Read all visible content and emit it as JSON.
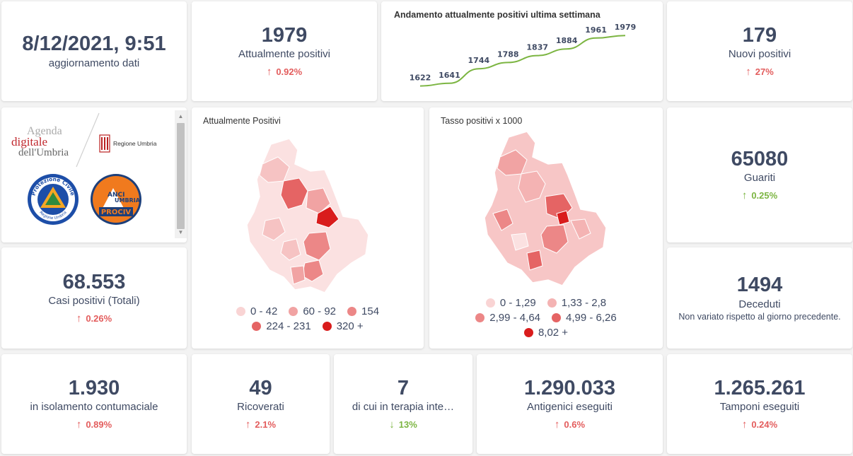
{
  "colors": {
    "up": "#e35d5d",
    "down": "#7cb542",
    "text": "#3f4a63",
    "line": "#7cb542"
  },
  "update": {
    "datetime": "8/12/2021, 9:51",
    "label": "aggiornamento dati"
  },
  "positivi": {
    "value": "1979",
    "label": "Attualmente positivi",
    "trend": "0.92%",
    "direction": "up"
  },
  "weekly_chart": {
    "title": "Andamento attualmente positivi ultima settimana"
  },
  "chart_data": {
    "type": "line",
    "title": "Andamento attualmente positivi ultima settimana",
    "x": [
      1,
      2,
      3,
      4,
      5,
      6,
      7,
      8
    ],
    "values": [
      1622,
      1641,
      1744,
      1788,
      1837,
      1884,
      1961,
      1979
    ],
    "labels": [
      "1622",
      "1641",
      "1744",
      "1788",
      "1837",
      "1884",
      "1961",
      "1979"
    ],
    "ylim": [
      1580,
      2000
    ],
    "grid": false,
    "legend": "none",
    "color": "#7cb542"
  },
  "nuovi": {
    "value": "179",
    "label": "Nuovi positivi",
    "trend": "27%",
    "direction": "up"
  },
  "logos": {
    "agenda_line1": "Agenda",
    "agenda_line2": "digitale",
    "agenda_line3": "dell'Umbria",
    "regione": "Regione Umbria",
    "protezione_top": "Protezione Civile",
    "protezione_bottom": "Regione Umbria",
    "anci_1": "ANCI",
    "anci_2": "UMBRIA",
    "anci_3": "PROCIV"
  },
  "map_positivi": {
    "title": "Attualmente Positivi",
    "legend": [
      {
        "label": "0 - 42",
        "color": "#f9d4d4"
      },
      {
        "label": "60 - 92",
        "color": "#f1a3a3"
      },
      {
        "label": "154",
        "color": "#ec8787"
      },
      {
        "label": "224 - 231",
        "color": "#e56464"
      },
      {
        "label": "320 +",
        "color": "#d91c1c"
      }
    ]
  },
  "map_tasso": {
    "title": "Tasso positivi x 1000",
    "legend": [
      {
        "label": "0 - 1,29",
        "color": "#f9d4d4"
      },
      {
        "label": "1,33 - 2,8",
        "color": "#f4b3b3"
      },
      {
        "label": "2,99 - 4,64",
        "color": "#ec8787"
      },
      {
        "label": "4,99 - 6,26",
        "color": "#e56464"
      },
      {
        "label": "8,02 +",
        "color": "#d91c1c"
      }
    ]
  },
  "guariti": {
    "value": "65080",
    "label": "Guariti",
    "trend": "0.25%",
    "direction": "up"
  },
  "casi": {
    "value": "68.553",
    "label": "Casi positivi (Totali)",
    "trend": "0.26%",
    "direction": "up"
  },
  "deceduti": {
    "value": "1494",
    "label": "Deceduti",
    "note": "Non variato rispetto al giorno precedente."
  },
  "isolamento": {
    "value": "1.930",
    "label": "in isolamento contumaciale",
    "trend": "0.89%",
    "direction": "up"
  },
  "ricoverati": {
    "value": "49",
    "label": "Ricoverati",
    "trend": "2.1%",
    "direction": "up"
  },
  "terapia": {
    "value": "7",
    "label": "di cui in terapia inte…",
    "trend": "13%",
    "direction": "down"
  },
  "antigenici": {
    "value": "1.290.033",
    "label": "Antigenici eseguiti",
    "trend": "0.6%",
    "direction": "up"
  },
  "tamponi": {
    "value": "1.265.261",
    "label": "Tamponi eseguiti",
    "trend": "0.24%",
    "direction": "up"
  }
}
